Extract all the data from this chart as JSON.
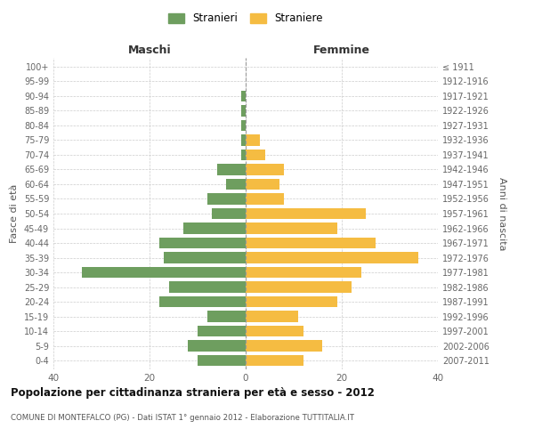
{
  "age_groups": [
    "0-4",
    "5-9",
    "10-14",
    "15-19",
    "20-24",
    "25-29",
    "30-34",
    "35-39",
    "40-44",
    "45-49",
    "50-54",
    "55-59",
    "60-64",
    "65-69",
    "70-74",
    "75-79",
    "80-84",
    "85-89",
    "90-94",
    "95-99",
    "100+"
  ],
  "birth_years": [
    "2007-2011",
    "2002-2006",
    "1997-2001",
    "1992-1996",
    "1987-1991",
    "1982-1986",
    "1977-1981",
    "1972-1976",
    "1967-1971",
    "1962-1966",
    "1957-1961",
    "1952-1956",
    "1947-1951",
    "1942-1946",
    "1937-1941",
    "1932-1936",
    "1927-1931",
    "1922-1926",
    "1917-1921",
    "1912-1916",
    "≤ 1911"
  ],
  "males": [
    10,
    12,
    10,
    8,
    18,
    16,
    34,
    17,
    18,
    13,
    7,
    8,
    4,
    6,
    1,
    1,
    1,
    1,
    1,
    0,
    0
  ],
  "females": [
    12,
    16,
    12,
    11,
    19,
    22,
    24,
    36,
    27,
    19,
    25,
    8,
    7,
    8,
    4,
    3,
    0,
    0,
    0,
    0,
    0
  ],
  "male_color": "#6e9e5f",
  "female_color": "#f5bc42",
  "background_color": "#ffffff",
  "grid_color": "#cccccc",
  "title": "Popolazione per cittadinanza straniera per età e sesso - 2012",
  "subtitle": "COMUNE DI MONTEFALCO (PG) - Dati ISTAT 1° gennaio 2012 - Elaborazione TUTTITALIA.IT",
  "xlabel_left": "Maschi",
  "xlabel_right": "Femmine",
  "ylabel_left": "Fasce di età",
  "ylabel_right": "Anni di nascita",
  "legend_male": "Stranieri",
  "legend_female": "Straniere",
  "xlim": 40
}
